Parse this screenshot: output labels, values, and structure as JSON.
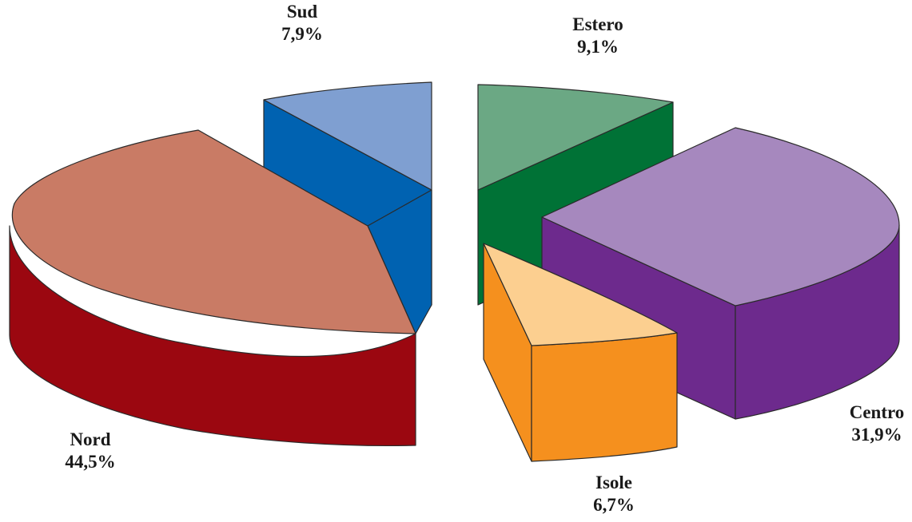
{
  "chart_data": {
    "type": "pie",
    "style": "3d-exploded",
    "slices": [
      {
        "name": "Nord",
        "value": 44.5,
        "value_label": "44,5%",
        "top_color": "#c97b65",
        "side_color": "#9b0710"
      },
      {
        "name": "Sud",
        "value": 7.9,
        "value_label": "7,9%",
        "top_color": "#7f9fd1",
        "side_color": "#0062b1"
      },
      {
        "name": "Estero",
        "value": 9.1,
        "value_label": "9,1%",
        "top_color": "#6ba884",
        "side_color": "#007236"
      },
      {
        "name": "Centro",
        "value": 31.9,
        "value_label": "31,9%",
        "top_color": "#a688be",
        "side_color": "#6d2a8d"
      },
      {
        "name": "Isole",
        "value": 6.7,
        "value_label": "6,7%",
        "top_color": "#fccf90",
        "side_color": "#f5901e"
      }
    ]
  }
}
